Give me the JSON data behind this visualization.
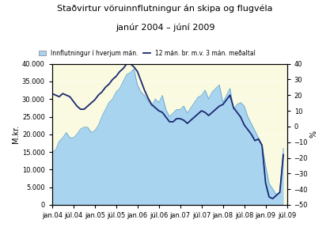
{
  "title_line1": "Staðvirtur vöruinnflutningur án skipa og flugvéla",
  "title_line2": "janúr 2004 – júní 2009",
  "ylabel_left": "M.kr.",
  "ylabel_right": "%",
  "ylim_left": [
    0,
    40000
  ],
  "ylim_right": [
    -50,
    40
  ],
  "background_color": "#FAFAE0",
  "area_color": "#A8D4F0",
  "area_edge_color": "#6AAAD4",
  "line_color": "#1A2870",
  "legend_area": "Innflutningur í hverjum mán.",
  "legend_line": "12 mán. br. m.v. 3 mán. meðaltal",
  "xtick_labels": [
    "jan.04",
    "júl.04",
    "jan.05",
    "júl.05",
    "jan.06",
    "júl.06",
    "jan.07",
    "júl.07",
    "jan.08",
    "júl.08",
    "jan.09",
    "júl.09"
  ],
  "xtick_positions": [
    0,
    6,
    12,
    18,
    24,
    30,
    36,
    42,
    48,
    54,
    60,
    66
  ],
  "imports": [
    15000,
    15500,
    18000,
    19000,
    20500,
    19000,
    19000,
    20000,
    21500,
    22000,
    22000,
    20500,
    21000,
    22500,
    25000,
    27000,
    29000,
    30000,
    32000,
    33000,
    35000,
    37000,
    37500,
    38500,
    34000,
    32000,
    31000,
    29500,
    28000,
    30000,
    29000,
    31000,
    27000,
    25000,
    26000,
    27000,
    27000,
    28000,
    26000,
    27500,
    29000,
    30500,
    31000,
    32500,
    30000,
    32000,
    33000,
    34000,
    29000,
    31000,
    33000,
    27000,
    28500,
    29000,
    28000,
    25000,
    23000,
    21000,
    19000,
    17000,
    11000,
    6000,
    4500,
    3000,
    3500,
    16000
  ],
  "pct_change": [
    21,
    20,
    19,
    21,
    20,
    19,
    16,
    13,
    11,
    11,
    13,
    15,
    17,
    20,
    22,
    25,
    27,
    30,
    32,
    35,
    37,
    40,
    40,
    38,
    35,
    29,
    23,
    18,
    14,
    12,
    10,
    9,
    6,
    3,
    3,
    5,
    5,
    4,
    2,
    4,
    6,
    8,
    10,
    9,
    7,
    9,
    11,
    13,
    14,
    17,
    20,
    12,
    9,
    6,
    1,
    -2,
    -5,
    -9,
    -8,
    -12,
    -36,
    -45,
    -46,
    -44,
    -42,
    -18
  ]
}
